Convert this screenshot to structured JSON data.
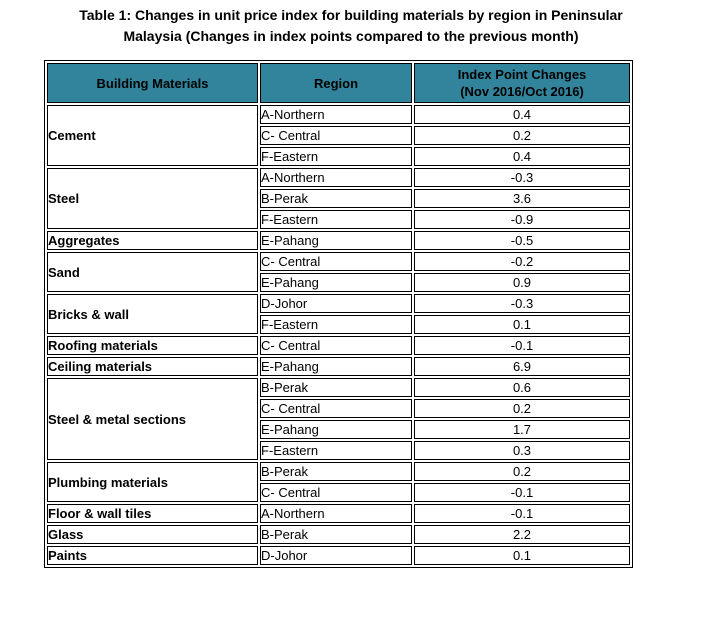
{
  "title": {
    "line1": "Table 1: Changes in unit price index for building materials by region in Peninsular",
    "line2": "Malaysia (Changes in index points compared to the previous month)"
  },
  "table": {
    "headers": {
      "materials": "Building Materials",
      "region": "Region",
      "index_line1": "Index Point Changes",
      "index_line2": "(Nov 2016/Oct 2016)"
    },
    "groups": [
      {
        "material": "Cement",
        "rows": [
          {
            "region": "A-Northern",
            "value": "0.4"
          },
          {
            "region": "C- Central",
            "value": "0.2"
          },
          {
            "region": "F-Eastern",
            "value": "0.4"
          }
        ]
      },
      {
        "material": "Steel",
        "rows": [
          {
            "region": "A-Northern",
            "value": "-0.3"
          },
          {
            "region": "B-Perak",
            "value": "3.6"
          },
          {
            "region": "F-Eastern",
            "value": "-0.9"
          }
        ]
      },
      {
        "material": "Aggregates",
        "rows": [
          {
            "region": "E-Pahang",
            "value": "-0.5"
          }
        ]
      },
      {
        "material": "Sand",
        "rows": [
          {
            "region": "C- Central",
            "value": "-0.2"
          },
          {
            "region": "E-Pahang",
            "value": "0.9"
          }
        ]
      },
      {
        "material": "Bricks & wall",
        "rows": [
          {
            "region": "D-Johor",
            "value": "-0.3"
          },
          {
            "region": "F-Eastern",
            "value": "0.1"
          }
        ]
      },
      {
        "material": "Roofing materials",
        "rows": [
          {
            "region": "C- Central",
            "value": "-0.1"
          }
        ]
      },
      {
        "material": "Ceiling materials",
        "rows": [
          {
            "region": "E-Pahang",
            "value": "6.9"
          }
        ]
      },
      {
        "material": "Steel & metal sections",
        "rows": [
          {
            "region": "B-Perak",
            "value": "0.6"
          },
          {
            "region": "C- Central",
            "value": "0.2"
          },
          {
            "region": "E-Pahang",
            "value": "1.7"
          },
          {
            "region": "F-Eastern",
            "value": "0.3"
          }
        ]
      },
      {
        "material": "Plumbing materials",
        "rows": [
          {
            "region": "B-Perak",
            "value": "0.2"
          },
          {
            "region": "C- Central",
            "value": "-0.1"
          }
        ]
      },
      {
        "material": "Floor & wall tiles",
        "rows": [
          {
            "region": "A-Northern",
            "value": "-0.1"
          }
        ]
      },
      {
        "material": "Glass",
        "rows": [
          {
            "region": "B-Perak",
            "value": "2.2"
          }
        ]
      },
      {
        "material": "Paints",
        "rows": [
          {
            "region": "D-Johor",
            "value": "0.1"
          }
        ]
      }
    ]
  },
  "colors": {
    "header_background": "#31849B",
    "border": "#000000",
    "text": "#000000",
    "page_background": "#ffffff"
  }
}
